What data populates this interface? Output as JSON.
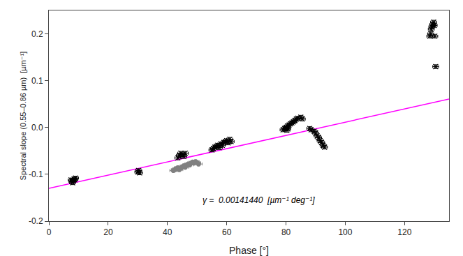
{
  "chart_data": {
    "type": "scatter",
    "title": "",
    "xlabel": "Phase [°]",
    "ylabel": "Spectral slope (0.55–0.86 µm)  [µm⁻¹]",
    "xlim": [
      0,
      135
    ],
    "ylim": [
      -0.2,
      0.25
    ],
    "xticks": [
      0,
      20,
      40,
      60,
      80,
      100,
      120
    ],
    "yticks": [
      -0.2,
      -0.1,
      {
        "value": 0.0,
        "label": "0.0"
      },
      0.1,
      0.2
    ],
    "grid": false,
    "annotations": [
      {
        "text": "γ =  0.00141440  [µm⁻¹ deg⁻¹]"
      }
    ],
    "series": [
      {
        "type": "line",
        "color": "#ff00ff",
        "line_style": "solid",
        "x": [
          0,
          135
        ],
        "values": [
          -0.13,
          0.06089
        ]
      },
      {
        "type": "scatter",
        "color": "gray",
        "marker": "circle",
        "x": [
          42.0,
          42.5,
          43.0,
          43.5,
          44.0,
          44.5,
          45.0,
          45.5,
          46.0,
          46.5,
          47.0,
          47.5,
          48.0,
          48.5,
          49.0,
          49.5,
          50.0,
          50.5
        ],
        "values": [
          -0.092,
          -0.09,
          -0.088,
          -0.086,
          -0.09,
          -0.087,
          -0.084,
          -0.082,
          -0.085,
          -0.08,
          -0.078,
          -0.08,
          -0.076,
          -0.074,
          -0.076,
          -0.073,
          -0.075,
          -0.078
        ],
        "x_error": 1.2,
        "y_error": 0.004
      },
      {
        "type": "scatter",
        "color": "black",
        "marker": "x",
        "x": [
          7.5,
          7.8,
          8.0,
          8.2,
          8.5,
          8.7,
          9.0,
          30.0,
          30.3,
          30.6,
          43.5,
          44.0,
          44.5,
          45.0,
          45.5,
          46.0,
          55.0,
          55.5,
          56.0,
          56.5,
          57.0,
          57.5,
          58.0,
          58.5,
          59.0,
          59.5,
          60.0,
          60.5,
          61.0,
          61.5,
          79.0,
          79.5,
          80.0,
          80.5,
          81.0,
          81.5,
          82.0,
          82.5,
          83.0,
          83.5,
          84.0,
          80.0,
          80.3,
          80.6,
          85.0,
          85.5,
          88.0,
          88.5,
          89.5,
          90.0,
          90.5,
          91.0,
          91.5,
          92.0,
          92.5,
          93.0,
          128.5,
          128.8,
          129.0,
          129.2,
          129.5,
          129.8,
          130.0,
          130.2,
          130.5
        ],
        "values": [
          -0.112,
          -0.115,
          -0.118,
          -0.113,
          -0.11,
          -0.112,
          -0.108,
          -0.095,
          -0.092,
          -0.097,
          -0.065,
          -0.06,
          -0.055,
          -0.058,
          -0.062,
          -0.055,
          -0.048,
          -0.045,
          -0.042,
          -0.04,
          -0.038,
          -0.043,
          -0.035,
          -0.038,
          -0.032,
          -0.03,
          -0.028,
          -0.033,
          -0.025,
          -0.03,
          -0.005,
          -0.002,
          0.0,
          0.003,
          0.005,
          0.008,
          0.01,
          0.012,
          0.015,
          0.018,
          0.02,
          -0.003,
          -0.006,
          -0.002,
          0.022,
          0.018,
          -0.002,
          -0.005,
          -0.008,
          -0.012,
          -0.018,
          -0.022,
          -0.028,
          -0.032,
          -0.038,
          -0.042,
          0.195,
          0.2,
          0.21,
          0.215,
          0.22,
          0.225,
          0.218,
          0.195,
          0.13
        ],
        "x_error": 1.0,
        "y_error": 0.004
      }
    ]
  }
}
